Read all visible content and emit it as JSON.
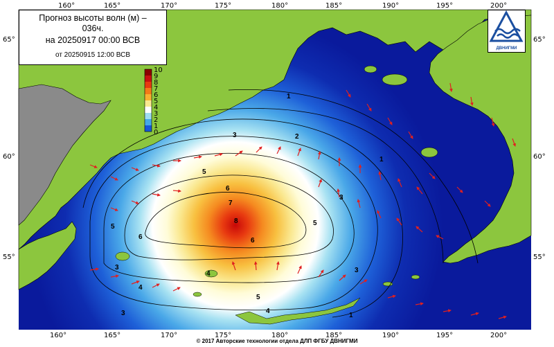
{
  "title": {
    "line1": "Прогноз высоты волн (м) –",
    "line2": "036ч.",
    "forecast_time": "на 20250917 00:00 ВСВ",
    "run_time": "от 20250915 12:00 ВСВ"
  },
  "logo": {
    "label": "ДВНИГМИ",
    "icon": "wave-triangle-logo"
  },
  "footer": "© 2017 Авторские технологии отдела ДЛП ФГБУ ДВНИГМИ",
  "longitude_labels": [
    "160°",
    "165°",
    "170°",
    "175°",
    "180°",
    "185°",
    "190°",
    "195°",
    "200°"
  ],
  "latitude_labels": [
    "65°",
    "60°",
    "55°"
  ],
  "colorbar": {
    "ticks": [
      "10",
      "9",
      "8",
      "7",
      "6",
      "5",
      "4",
      "3",
      "2",
      "1",
      "0"
    ],
    "colors": [
      "#8b0000",
      "#c81010",
      "#e83a10",
      "#f47a18",
      "#f8b030",
      "#fae890",
      "#ffffff",
      "#9fdcf0",
      "#44a8e8",
      "#1656d8",
      "#0a1aa0"
    ]
  },
  "isolines": [
    "1",
    "2",
    "3",
    "1",
    "3",
    "5",
    "6",
    "7",
    "8",
    "6",
    "5",
    "5",
    "4",
    "3",
    "4",
    "3",
    "5",
    "4",
    "6",
    "3",
    "1"
  ],
  "colors": {
    "land": "#8cc63e",
    "unknown_land": "#8a8a8a",
    "arrow": "#e02020",
    "deep_sea": "#0a1aa0"
  }
}
